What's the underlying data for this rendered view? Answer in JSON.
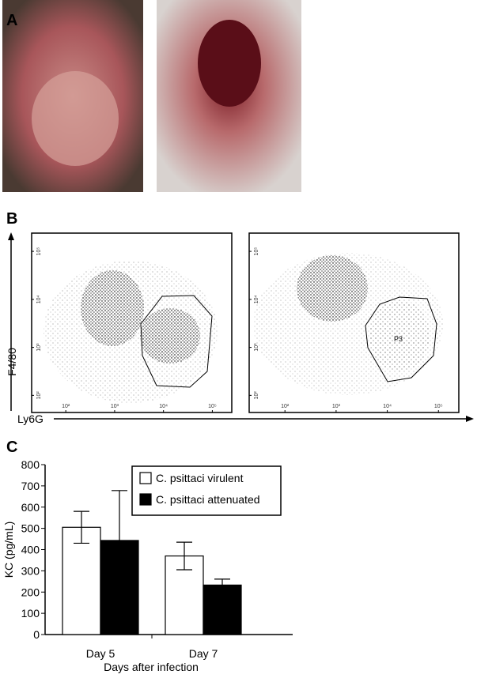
{
  "panel_labels": [
    "A",
    "B",
    "C"
  ],
  "flow": {
    "y_label": "F4/80",
    "x_label": "Ly6G",
    "gate_label": "P3",
    "log": true,
    "xlim": [
      20,
      250000
    ],
    "ylim": [
      44,
      240000
    ],
    "xticks": [
      {
        "value": 100,
        "label": "10²"
      },
      {
        "value": 1000,
        "label": "10³"
      },
      {
        "value": 10000,
        "label": "10⁴"
      },
      {
        "value": 100000,
        "label": "10⁵"
      }
    ],
    "yticks": [
      {
        "value": 100,
        "label": "10²"
      },
      {
        "value": 1000,
        "label": "10³"
      },
      {
        "value": 10000,
        "label": "10⁴"
      },
      {
        "value": 100000,
        "label": "10⁵"
      }
    ]
  },
  "chart_data": {
    "type": "bar",
    "y_label": "KC (pg/mL)",
    "x_label": "Days after infection",
    "categories": [
      "Day 5",
      "Day 7"
    ],
    "series": [
      {
        "name": "C. psittaci virulent",
        "color": "#ffffff",
        "values": [
          505,
          370
        ],
        "errors": [
          75,
          65
        ]
      },
      {
        "name": "C. psittaci attenuated",
        "color": "#000000",
        "values": [
          443,
          233
        ],
        "errors": [
          235,
          28
        ]
      }
    ],
    "ylim": [
      0,
      800
    ],
    "yticks": [
      0,
      100,
      200,
      300,
      400,
      500,
      600,
      700,
      800
    ]
  }
}
